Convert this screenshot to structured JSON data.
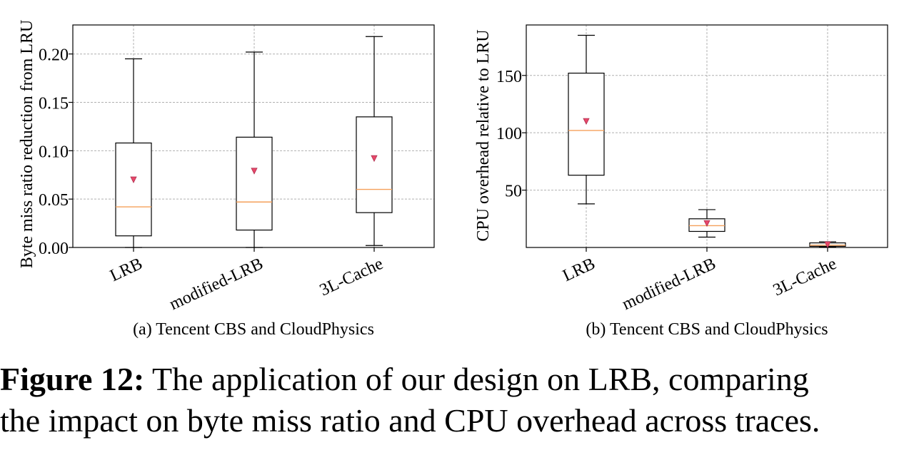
{
  "figure_caption": {
    "label": "Figure 12:",
    "line1": "The application of our design on LRB, comparing",
    "line2": "the impact on byte miss ratio and CPU overhead across traces."
  },
  "colors": {
    "median": "#f5a05a",
    "mean_marker": "#e8486a",
    "grid": "#b0b0b0",
    "box": "#000000"
  },
  "chart_data": [
    {
      "type": "box",
      "subcaption": "(a) Tencent CBS and CloudPhysics",
      "ylabel": "Byte miss ratio reduction from LRU",
      "xlabel": "",
      "ylim": [
        0,
        0.23
      ],
      "yticks": [
        0.0,
        0.05,
        0.1,
        0.15,
        0.2
      ],
      "ytick_labels": [
        "0.00",
        "0.05",
        "0.10",
        "0.15",
        "0.20"
      ],
      "grid": true,
      "categories": [
        "LRB",
        "modified-LRB",
        "3L-Cache"
      ],
      "boxes": [
        {
          "whisker_low": 0.0,
          "q1": 0.012,
          "median": 0.042,
          "q3": 0.108,
          "whisker_high": 0.195,
          "mean": 0.07
        },
        {
          "whisker_low": 0.0,
          "q1": 0.018,
          "median": 0.047,
          "q3": 0.114,
          "whisker_high": 0.202,
          "mean": 0.079
        },
        {
          "whisker_low": 0.002,
          "q1": 0.036,
          "median": 0.06,
          "q3": 0.135,
          "whisker_high": 0.218,
          "mean": 0.092
        }
      ]
    },
    {
      "type": "box",
      "subcaption": "(b) Tencent CBS and CloudPhysics",
      "ylabel": "CPU overhead relative to LRU",
      "xlabel": "",
      "ylim": [
        0,
        194
      ],
      "yticks": [
        50,
        100,
        150
      ],
      "ytick_labels": [
        "50",
        "100",
        "150"
      ],
      "grid": true,
      "categories": [
        "LRB",
        "modified-LRB",
        "3L-Cache"
      ],
      "boxes": [
        {
          "whisker_low": 38,
          "q1": 63,
          "median": 102,
          "q3": 152,
          "whisker_high": 185,
          "mean": 110
        },
        {
          "whisker_low": 9,
          "q1": 14,
          "median": 19,
          "q3": 25,
          "whisker_high": 33,
          "mean": 21
        },
        {
          "whisker_low": 0.5,
          "q1": 1,
          "median": 2,
          "q3": 4,
          "whisker_high": 5,
          "mean": 2.5
        }
      ]
    }
  ]
}
